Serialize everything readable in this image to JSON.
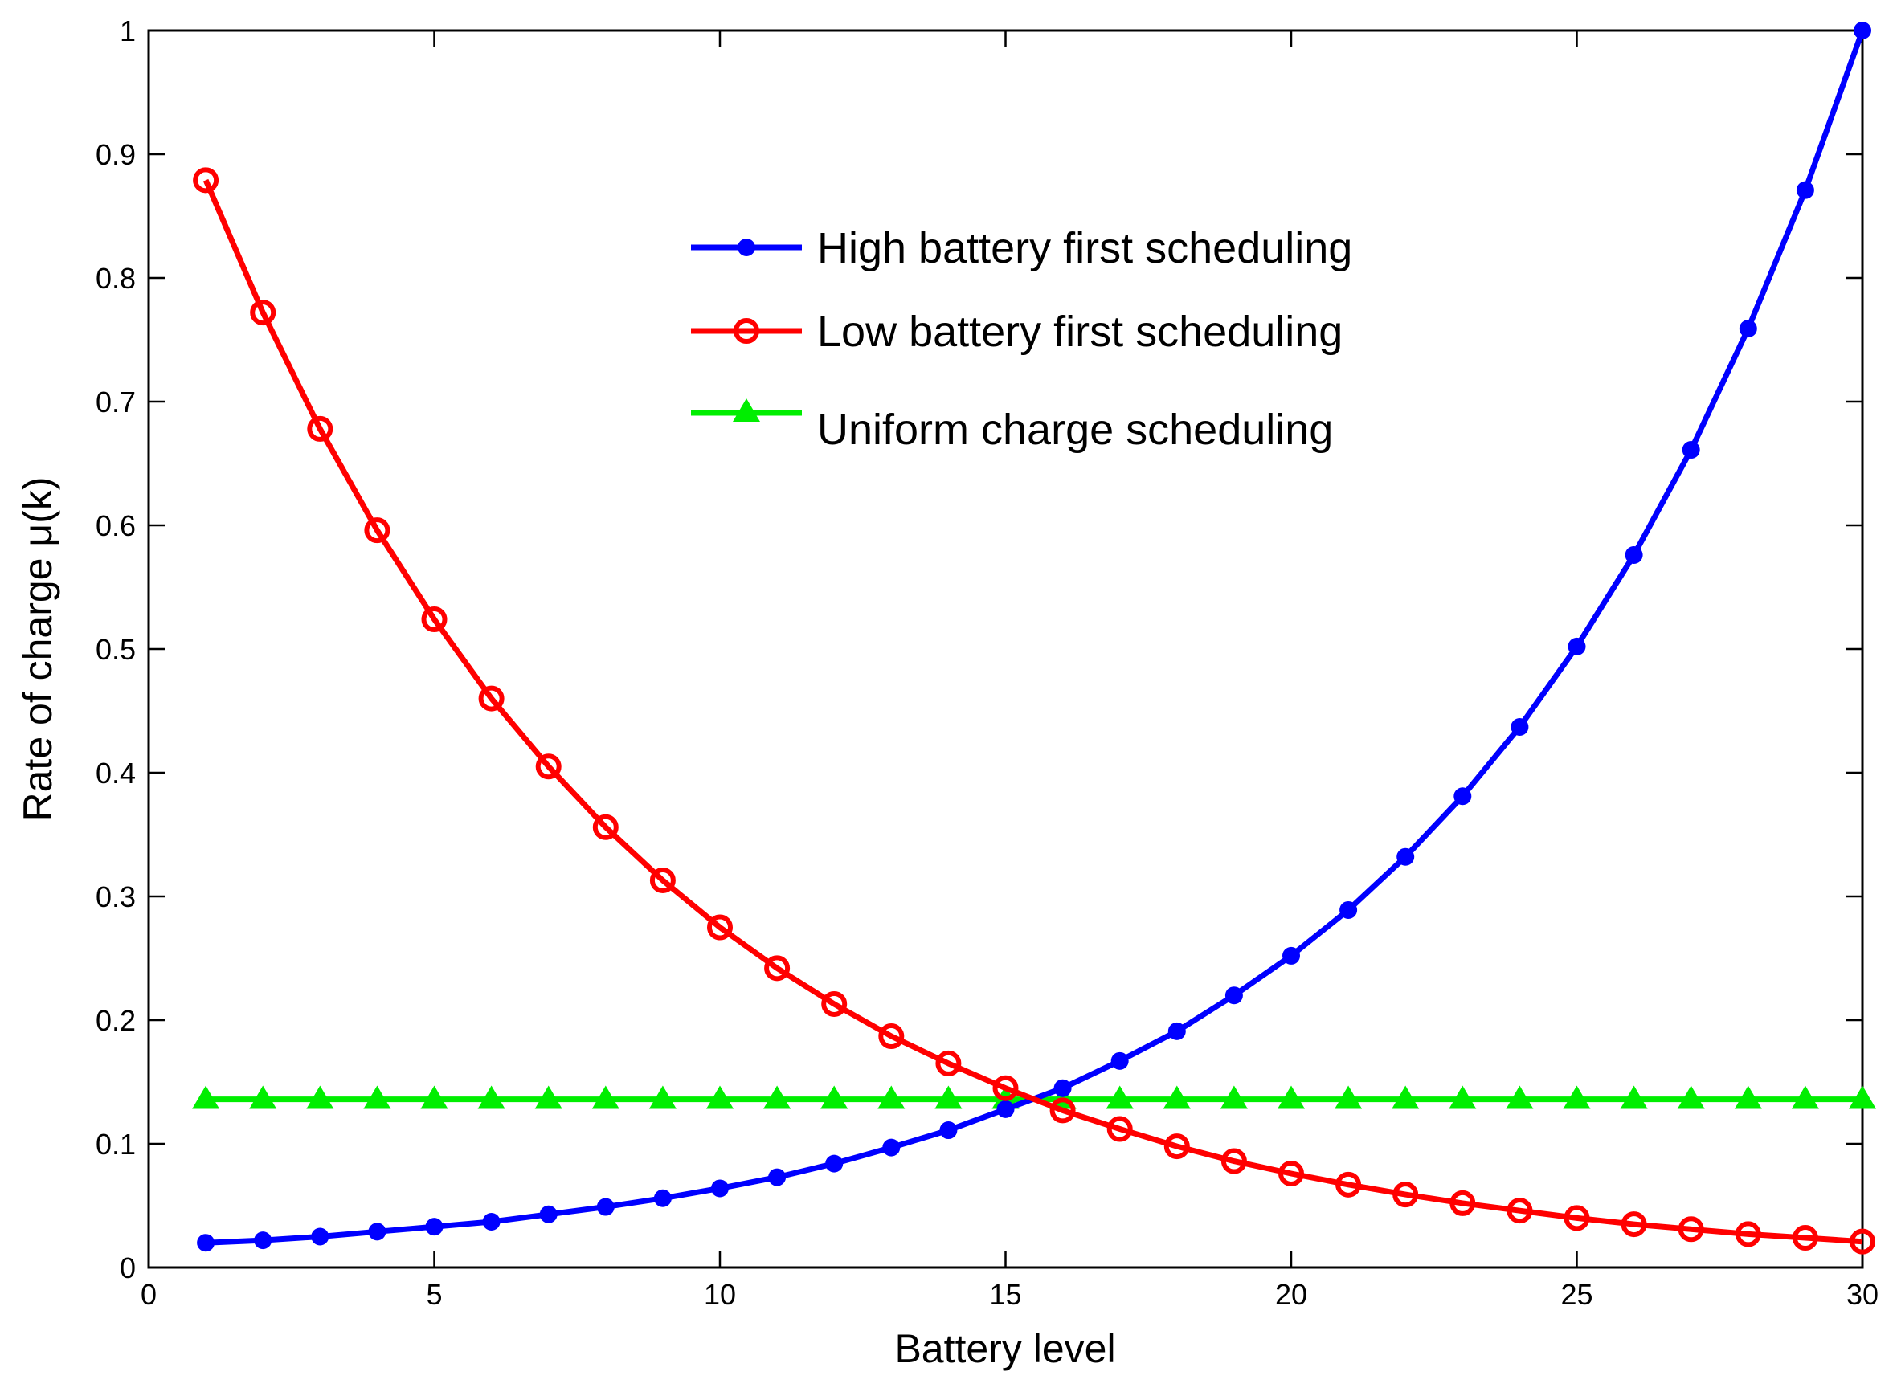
{
  "chart_data": {
    "type": "line",
    "title": "",
    "xlabel": "Battery level",
    "ylabel": "Rate of charge μ(k)",
    "xlim": [
      0,
      30
    ],
    "ylim": [
      0,
      1
    ],
    "xticks": [
      0,
      5,
      10,
      15,
      20,
      25,
      30
    ],
    "yticks": [
      0,
      0.1,
      0.2,
      0.3,
      0.4,
      0.5,
      0.6,
      0.7,
      0.8,
      0.9,
      1
    ],
    "ytick_labels": [
      "0",
      "0.1",
      "0.2",
      "0.3",
      "0.4",
      "0.5",
      "0.6",
      "0.7",
      "0.8",
      "0.9",
      "1"
    ],
    "grid": false,
    "legend_position": "top-center",
    "x": [
      1,
      2,
      3,
      4,
      5,
      6,
      7,
      8,
      9,
      10,
      11,
      12,
      13,
      14,
      15,
      16,
      17,
      18,
      19,
      20,
      21,
      22,
      23,
      24,
      25,
      26,
      27,
      28,
      29,
      30
    ],
    "series": [
      {
        "name": "High battery first scheduling",
        "color": "#0000ff",
        "marker": "dot",
        "values": [
          0.02,
          0.022,
          0.025,
          0.029,
          0.033,
          0.037,
          0.043,
          0.049,
          0.056,
          0.064,
          0.073,
          0.084,
          0.097,
          0.111,
          0.128,
          0.145,
          0.167,
          0.191,
          0.22,
          0.252,
          0.289,
          0.332,
          0.381,
          0.437,
          0.502,
          0.576,
          0.661,
          0.759,
          0.871,
          1.0
        ]
      },
      {
        "name": "Low battery first scheduling",
        "color": "#ff0000",
        "marker": "circle",
        "values": [
          0.879,
          0.772,
          0.678,
          0.596,
          0.524,
          0.46,
          0.405,
          0.356,
          0.313,
          0.275,
          0.242,
          0.213,
          0.187,
          0.165,
          0.145,
          0.127,
          0.112,
          0.098,
          0.086,
          0.076,
          0.067,
          0.059,
          0.052,
          0.046,
          0.04,
          0.035,
          0.031,
          0.027,
          0.024,
          0.021
        ]
      },
      {
        "name": "Uniform charge scheduling",
        "color": "#00ee00",
        "marker": "triangle",
        "values": [
          0.136,
          0.136,
          0.136,
          0.136,
          0.136,
          0.136,
          0.136,
          0.136,
          0.136,
          0.136,
          0.136,
          0.136,
          0.136,
          0.136,
          0.136,
          0.136,
          0.136,
          0.136,
          0.136,
          0.136,
          0.136,
          0.136,
          0.136,
          0.136,
          0.136,
          0.136,
          0.136,
          0.136,
          0.136,
          0.136
        ]
      }
    ]
  }
}
